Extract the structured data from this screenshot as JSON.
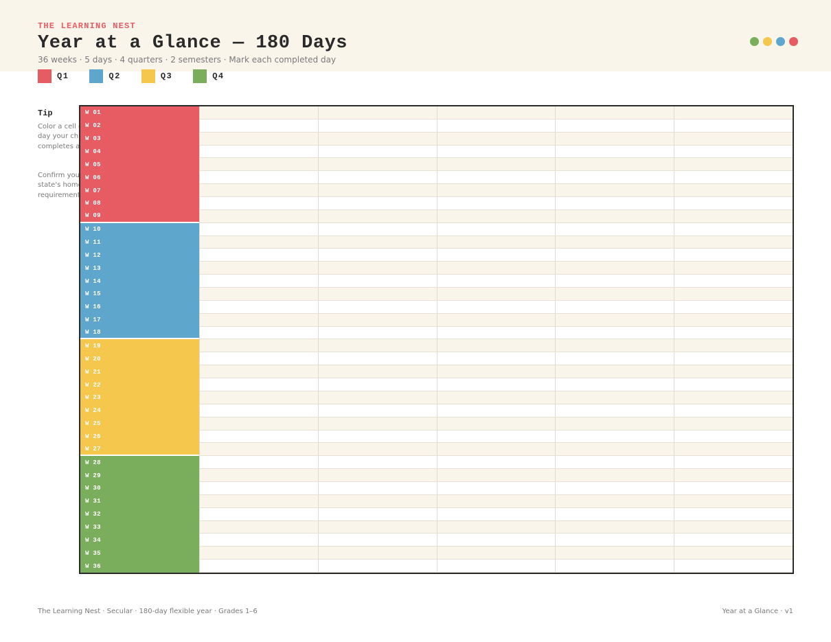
{
  "header": {
    "brand": "THE LEARNING NEST",
    "title": "Year at a Glance — 180 Days",
    "subtitle": "36 weeks · 5 days · 4 quarters · 2 semesters · Mark each completed day",
    "dot_colors": [
      "#7aad5c",
      "#f5c74c",
      "#5ea6cc",
      "#e75c63"
    ]
  },
  "legend": [
    {
      "label": "Q1",
      "color": "#e75c63"
    },
    {
      "label": "Q2",
      "color": "#5ea6cc"
    },
    {
      "label": "Q3",
      "color": "#f5c74c"
    },
    {
      "label": "Q4",
      "color": "#7aad5c"
    }
  ],
  "tip": {
    "title": "Tip",
    "text1": "Color a cell each day your child completes a lesson.",
    "text2": "Confirm your state's homeschool requirements."
  },
  "grid": {
    "days_per_week": 5,
    "weeks": [
      {
        "label": "W 01",
        "quarter": "Q1"
      },
      {
        "label": "W 02",
        "quarter": "Q1"
      },
      {
        "label": "W 03",
        "quarter": "Q1"
      },
      {
        "label": "W 04",
        "quarter": "Q1"
      },
      {
        "label": "W 05",
        "quarter": "Q1"
      },
      {
        "label": "W 06",
        "quarter": "Q1"
      },
      {
        "label": "W 07",
        "quarter": "Q1"
      },
      {
        "label": "W 08",
        "quarter": "Q1"
      },
      {
        "label": "W 09",
        "quarter": "Q1"
      },
      {
        "label": "W 10",
        "quarter": "Q2"
      },
      {
        "label": "W 11",
        "quarter": "Q2"
      },
      {
        "label": "W 12",
        "quarter": "Q2"
      },
      {
        "label": "W 13",
        "quarter": "Q2"
      },
      {
        "label": "W 14",
        "quarter": "Q2"
      },
      {
        "label": "W 15",
        "quarter": "Q2"
      },
      {
        "label": "W 16",
        "quarter": "Q2"
      },
      {
        "label": "W 17",
        "quarter": "Q2"
      },
      {
        "label": "W 18",
        "quarter": "Q2"
      },
      {
        "label": "W 19",
        "quarter": "Q3"
      },
      {
        "label": "W 20",
        "quarter": "Q3"
      },
      {
        "label": "W 21",
        "quarter": "Q3"
      },
      {
        "label": "W 22",
        "quarter": "Q3"
      },
      {
        "label": "W 23",
        "quarter": "Q3"
      },
      {
        "label": "W 24",
        "quarter": "Q3"
      },
      {
        "label": "W 25",
        "quarter": "Q3"
      },
      {
        "label": "W 26",
        "quarter": "Q3"
      },
      {
        "label": "W 27",
        "quarter": "Q3"
      },
      {
        "label": "W 28",
        "quarter": "Q4"
      },
      {
        "label": "W 29",
        "quarter": "Q4"
      },
      {
        "label": "W 30",
        "quarter": "Q4"
      },
      {
        "label": "W 31",
        "quarter": "Q4"
      },
      {
        "label": "W 32",
        "quarter": "Q4"
      },
      {
        "label": "W 33",
        "quarter": "Q4"
      },
      {
        "label": "W 34",
        "quarter": "Q4"
      },
      {
        "label": "W 35",
        "quarter": "Q4"
      },
      {
        "label": "W 36",
        "quarter": "Q4"
      }
    ]
  },
  "footer": {
    "left": "The Learning Nest · Secular · 180-day flexible year · Grades 1–6",
    "right": "Year at a Glance · v1"
  }
}
